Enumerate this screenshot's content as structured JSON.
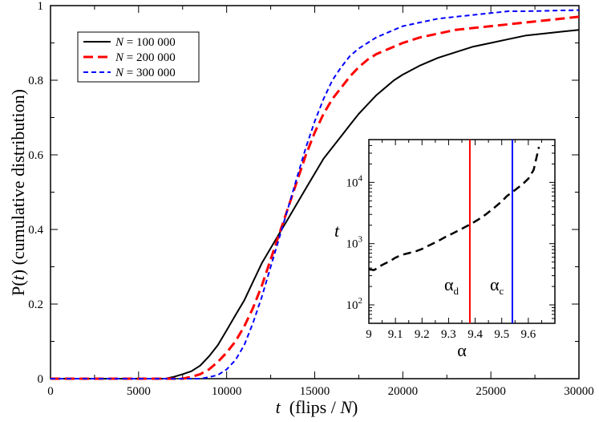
{
  "chart_data": [
    {
      "type": "line",
      "ylabel_prefix": "P(",
      "ylabel_var": "t",
      "ylabel_suffix": ") (cumulative distribution)",
      "xlabel_var": "t",
      "xlabel_mid": "  (flips / ",
      "xlabel_var2": "N",
      "xlabel_suffix": ")",
      "xlim": [
        0,
        30000
      ],
      "ylim": [
        0,
        1
      ],
      "x_ticks": [
        "0",
        "5000",
        "10000",
        "15000",
        "20000",
        "25000",
        "30000"
      ],
      "y_ticks": [
        "0",
        "0.2",
        "0.4",
        "0.6",
        "0.8",
        "1"
      ],
      "legend_position": "top-left",
      "series": [
        {
          "name_var": "N",
          "name_value": " = 100 000",
          "color": "#000000",
          "dash": "solid",
          "x": [
            0,
            6500,
            7000,
            7500,
            8000,
            8500,
            9000,
            9500,
            10000,
            10500,
            11000,
            11500,
            12000,
            12500,
            13000,
            13500,
            14000,
            14500,
            15000,
            15500,
            16000,
            16500,
            17000,
            17500,
            18000,
            18500,
            19000,
            19500,
            20000,
            21000,
            22000,
            23000,
            24000,
            25000,
            26000,
            27000,
            28000,
            29000,
            30000
          ],
          "y": [
            0,
            0,
            0.005,
            0.012,
            0.02,
            0.035,
            0.06,
            0.09,
            0.13,
            0.17,
            0.21,
            0.26,
            0.31,
            0.35,
            0.39,
            0.43,
            0.47,
            0.51,
            0.55,
            0.59,
            0.62,
            0.65,
            0.68,
            0.71,
            0.735,
            0.76,
            0.78,
            0.8,
            0.815,
            0.84,
            0.86,
            0.875,
            0.89,
            0.9,
            0.91,
            0.92,
            0.925,
            0.93,
            0.935
          ]
        },
        {
          "name_var": "N",
          "name_value": " = 200 000",
          "color": "#ff0000",
          "dash": "long",
          "x": [
            0,
            7500,
            8000,
            8500,
            9000,
            9500,
            10000,
            10500,
            11000,
            11500,
            12000,
            12500,
            13000,
            13500,
            14000,
            14500,
            15000,
            15500,
            16000,
            16500,
            17000,
            17500,
            18000,
            18500,
            19000,
            19500,
            20000,
            21000,
            22000,
            23000,
            24000,
            25000,
            26000,
            27000,
            28000,
            29000,
            30000
          ],
          "y": [
            0,
            0,
            0.005,
            0.012,
            0.025,
            0.045,
            0.07,
            0.1,
            0.14,
            0.19,
            0.25,
            0.32,
            0.39,
            0.46,
            0.53,
            0.6,
            0.66,
            0.71,
            0.75,
            0.78,
            0.81,
            0.835,
            0.855,
            0.87,
            0.88,
            0.89,
            0.9,
            0.915,
            0.925,
            0.935,
            0.94,
            0.945,
            0.95,
            0.955,
            0.96,
            0.965,
            0.97
          ]
        },
        {
          "name_var": "N",
          "name_value": " = 300 000",
          "color": "#0000ff",
          "dash": "short",
          "x": [
            0,
            8500,
            9000,
            9500,
            10000,
            10500,
            11000,
            11500,
            12000,
            12500,
            13000,
            13500,
            14000,
            14500,
            15000,
            15500,
            16000,
            16500,
            17000,
            17500,
            18000,
            18500,
            19000,
            19500,
            20000,
            21000,
            22000,
            23000,
            24000,
            25000,
            26000,
            27000,
            28000,
            29000,
            30000
          ],
          "y": [
            0,
            0,
            0.004,
            0.01,
            0.025,
            0.05,
            0.09,
            0.15,
            0.22,
            0.3,
            0.38,
            0.46,
            0.54,
            0.62,
            0.69,
            0.75,
            0.8,
            0.835,
            0.865,
            0.885,
            0.9,
            0.915,
            0.925,
            0.935,
            0.945,
            0.955,
            0.965,
            0.97,
            0.975,
            0.98,
            0.985,
            0.985,
            0.986,
            0.987,
            0.988
          ]
        }
      ]
    },
    {
      "type": "line",
      "xlabel": "α",
      "ylabel": "t",
      "xlim": [
        9.0,
        9.7
      ],
      "ylim_log": [
        50,
        50000
      ],
      "yscale": "log",
      "x_ticks": [
        "9",
        "9.1",
        "9.2",
        "9.3",
        "9.4",
        "9.5",
        "9.6"
      ],
      "y_ticks_base": "10",
      "y_ticks_exp": [
        "2",
        "3",
        "4"
      ],
      "series": [
        {
          "color": "#000000",
          "dash": "long",
          "x": [
            9.0,
            9.02,
            9.05,
            9.08,
            9.1,
            9.12,
            9.15,
            9.18,
            9.2,
            9.23,
            9.26,
            9.29,
            9.32,
            9.35,
            9.38,
            9.41,
            9.44,
            9.47,
            9.5,
            9.52,
            9.55,
            9.58,
            9.6,
            9.62,
            9.64
          ],
          "y": [
            380,
            370,
            450,
            520,
            590,
            650,
            700,
            760,
            820,
            950,
            1100,
            1300,
            1500,
            1750,
            2050,
            2450,
            3000,
            3800,
            4900,
            6000,
            7500,
            9500,
            11500,
            16000,
            38000
          ]
        }
      ],
      "vlines": [
        {
          "label_main": "α",
          "label_sub": "d",
          "x": 9.38,
          "color": "#ff0000"
        },
        {
          "label_main": "α",
          "label_sub": "c",
          "x": 9.54,
          "color": "#0000ff"
        }
      ]
    }
  ]
}
